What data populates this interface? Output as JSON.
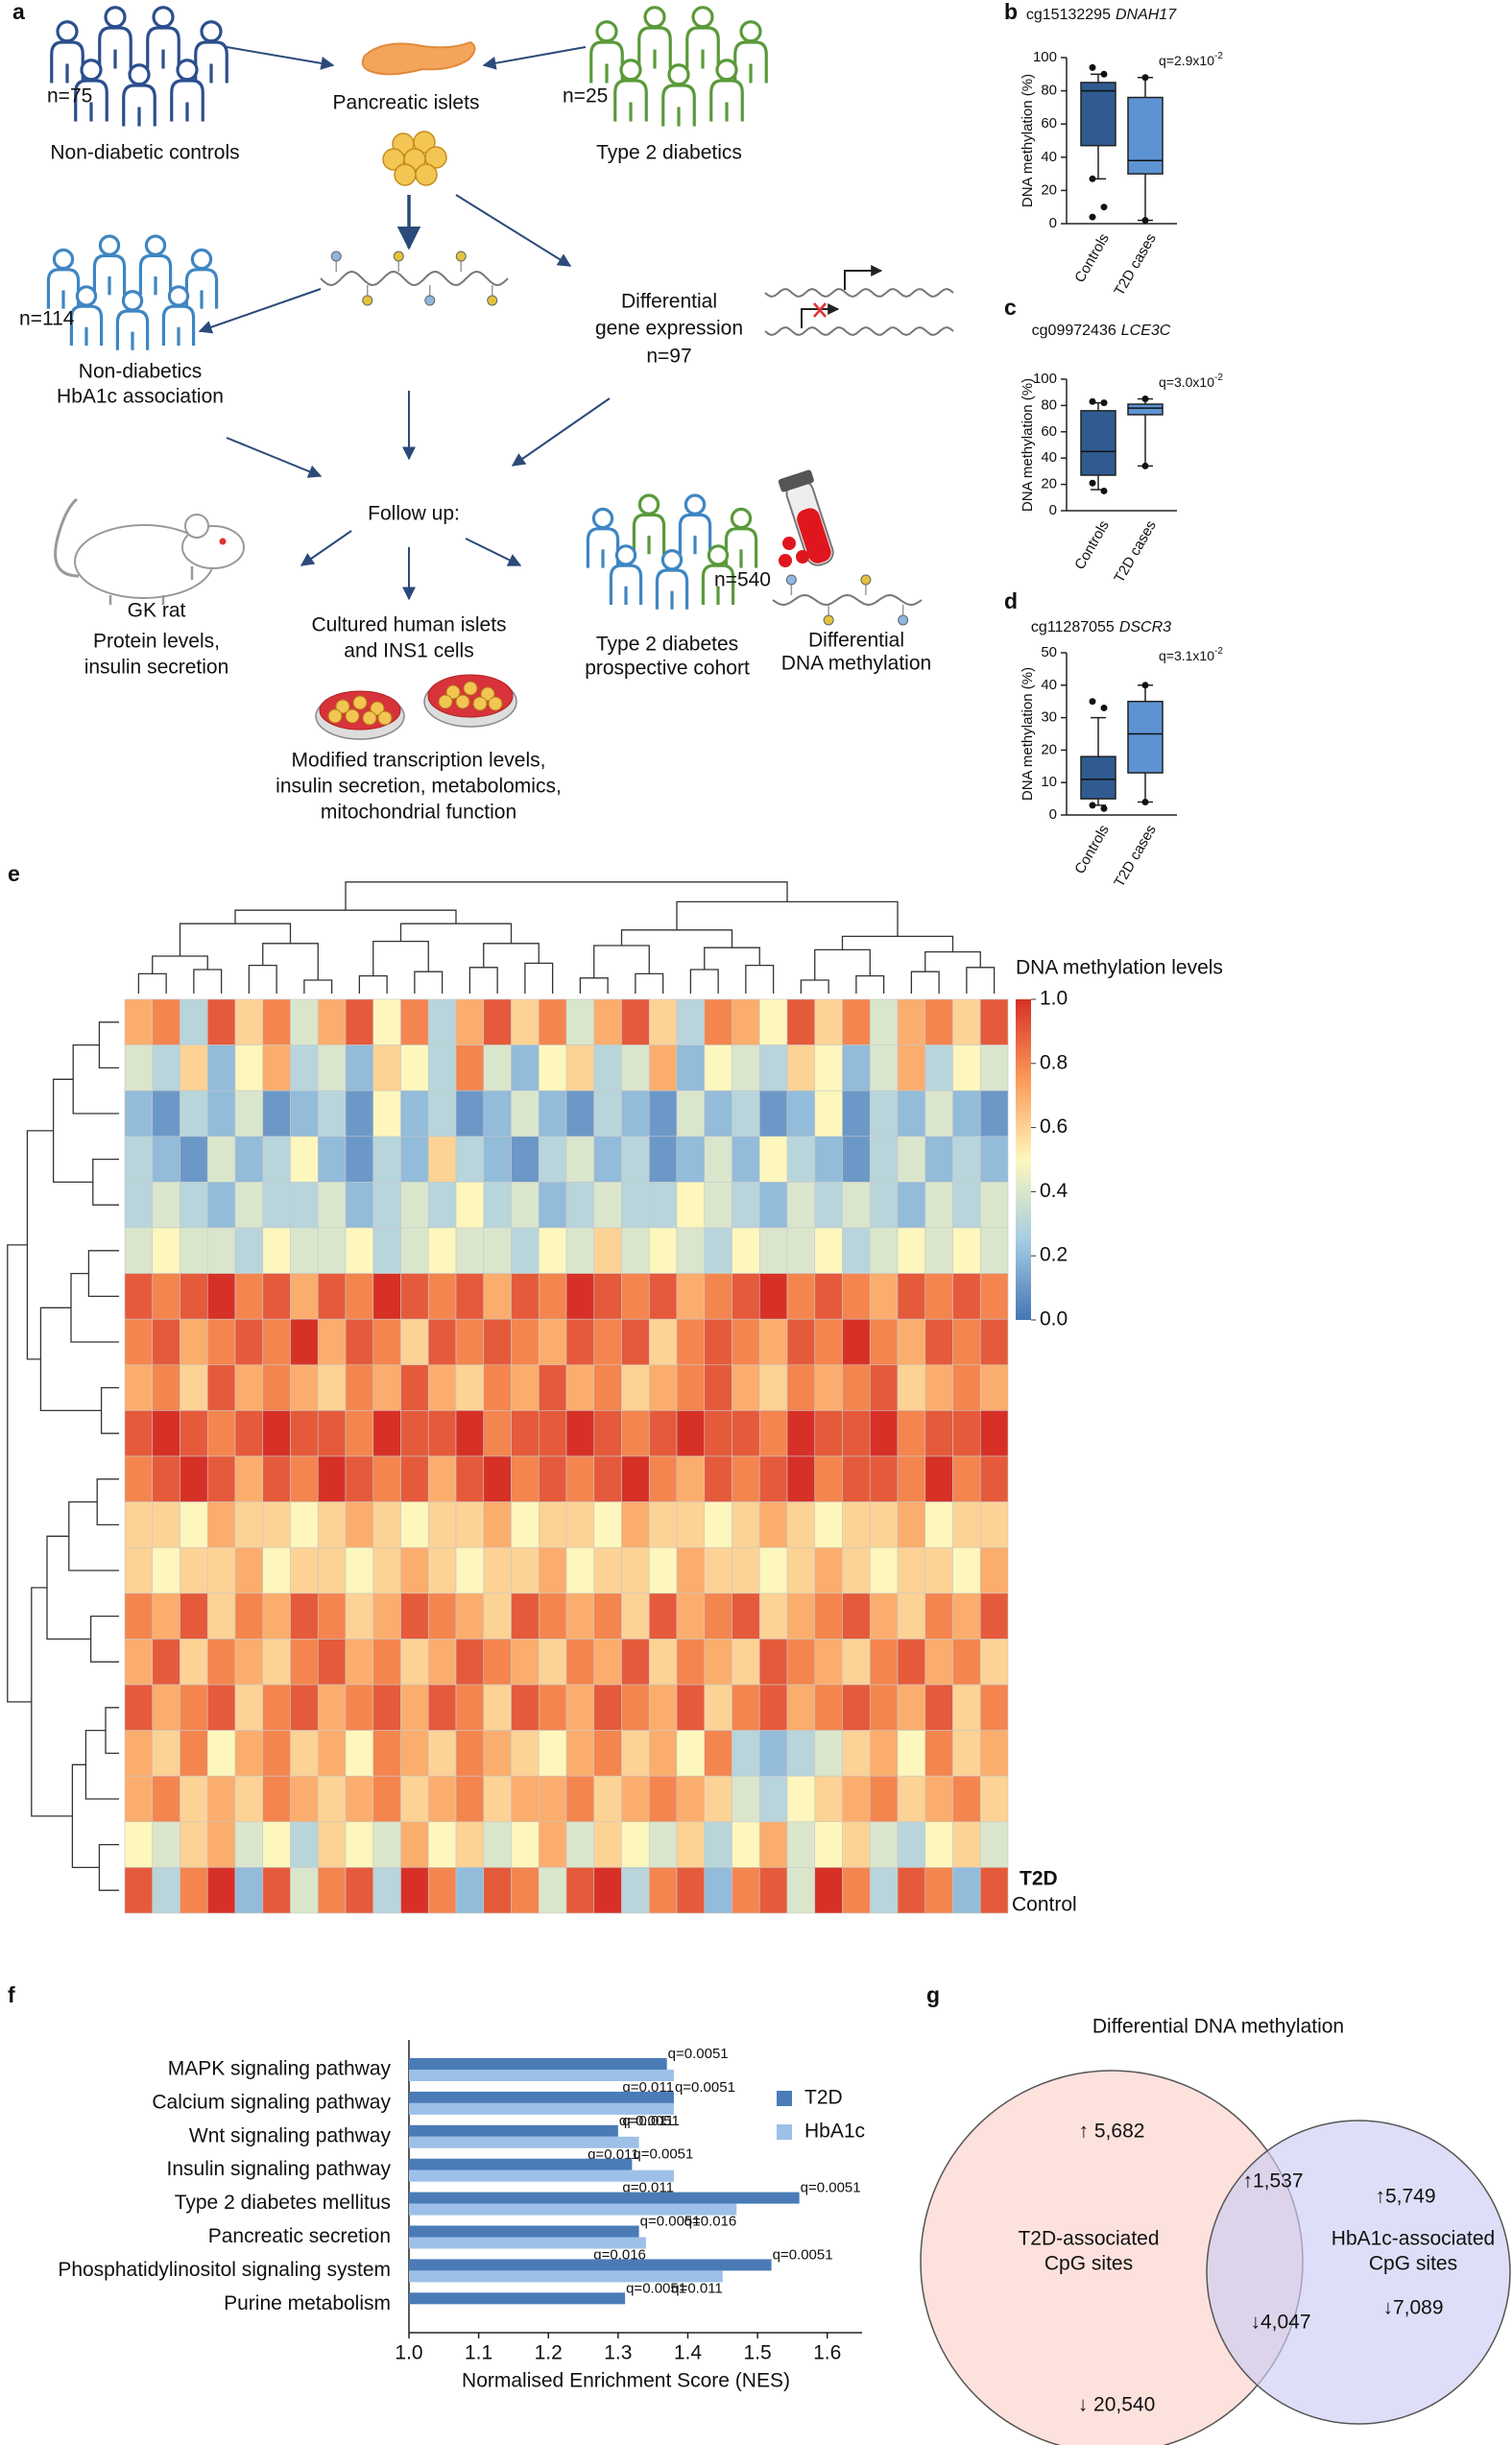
{
  "panel_labels": [
    "a",
    "b",
    "c",
    "d",
    "e",
    "f",
    "g"
  ],
  "diagram": {
    "texts": [
      "n=75",
      "Non-diabetic controls",
      "Pancreatic islets",
      "n=25",
      "Type 2 diabetics",
      "n=114",
      "Non-diabetics",
      "HbA1c association",
      "Differential",
      "gene expression",
      "n=97",
      "Follow up:",
      "GK rat",
      "Protein levels,",
      "insulin secretion",
      "Cultured human islets",
      "and INS1 cells",
      "Modified transcription levels,",
      "insulin secretion, metabolomics,",
      "mitochondrial function",
      "n=540",
      "Type 2 diabetes",
      "prospective cohort",
      "Differential",
      "DNA methylation"
    ]
  },
  "chart_data": [
    {
      "type": "box",
      "title": "cg15132295",
      "gene": "DNAH17",
      "q": "q=2.9x10",
      "q_exp": "-2",
      "ylabel": "DNA methylation (%)",
      "categories": [
        "Controls",
        "T2D cases"
      ],
      "colors": [
        "#2f5b91",
        "#5e93d3"
      ],
      "boxes": [
        {
          "whislo": 27,
          "q1": 47,
          "med": 80,
          "q3": 85,
          "whishi": 90,
          "fliers": [
            94,
            90,
            27,
            10,
            4
          ]
        },
        {
          "whislo": 2,
          "q1": 30,
          "med": 38,
          "q3": 76,
          "whishi": 88,
          "fliers": [
            88,
            2
          ]
        }
      ],
      "ylim": [
        0,
        100
      ],
      "yticks": [
        0,
        20,
        40,
        60,
        80,
        100
      ]
    },
    {
      "type": "box",
      "title": "cg09972436",
      "gene": "LCE3C",
      "q": "q=3.0x10",
      "q_exp": "-2",
      "ylabel": "DNA methylation (%)",
      "categories": [
        "Controls",
        "T2D cases"
      ],
      "colors": [
        "#2f5b91",
        "#5e93d3"
      ],
      "boxes": [
        {
          "whislo": 16,
          "q1": 27,
          "med": 45,
          "q3": 76,
          "whishi": 82,
          "fliers": [
            83,
            82,
            21,
            15
          ]
        },
        {
          "whislo": 34,
          "q1": 73,
          "med": 78,
          "q3": 81,
          "whishi": 85,
          "fliers": [
            85,
            34
          ]
        }
      ],
      "ylim": [
        0,
        100
      ],
      "yticks": [
        0,
        20,
        40,
        60,
        80,
        100
      ]
    },
    {
      "type": "box",
      "title": "cg11287055",
      "gene": "DSCR3",
      "q": "q=3.1x10",
      "q_exp": "-2",
      "ylabel": "DNA methylation (%)",
      "categories": [
        "Controls",
        "T2D cases"
      ],
      "colors": [
        "#2f5b91",
        "#5e93d3"
      ],
      "boxes": [
        {
          "whislo": 3,
          "q1": 5,
          "med": 11,
          "q3": 18,
          "whishi": 30,
          "fliers": [
            35,
            33,
            3,
            2
          ]
        },
        {
          "whislo": 4,
          "q1": 13,
          "med": 25,
          "q3": 35,
          "whishi": 40,
          "fliers": [
            40,
            4
          ]
        }
      ],
      "ylim": [
        0,
        50
      ],
      "yticks": [
        0,
        10,
        20,
        30,
        40,
        50
      ]
    },
    {
      "type": "heatmap",
      "colorbar_title": "DNA methylation levels",
      "colormap": [
        "#4575b4",
        "#a6cde3",
        "#fdf7bd",
        "#fb9a59",
        "#d73027"
      ],
      "zlim": [
        0,
        1
      ],
      "zticks": [
        {
          "value": 0,
          "label": "0.0"
        },
        {
          "value": 0.2,
          "label": "0.2"
        },
        {
          "value": 0.4,
          "label": "0.4"
        },
        {
          "value": 0.6,
          "label": "0.6"
        },
        {
          "value": 0.8,
          "label": "0.8"
        },
        {
          "value": 1,
          "label": "1.0"
        }
      ],
      "group_labels": [
        "T2D",
        "Control"
      ],
      "group_colors": [
        "#7aa7d8",
        "#4a78b0"
      ],
      "values": [
        [
          0.7,
          0.8,
          0.3,
          0.9,
          0.6,
          0.8,
          0.4,
          0.7,
          0.9,
          0.5,
          0.8,
          0.3,
          0.7,
          0.9,
          0.6,
          0.8,
          0.4,
          0.7,
          0.9,
          0.6,
          0.3,
          0.8,
          0.7,
          0.5,
          0.9,
          0.6,
          0.8,
          0.4,
          0.7,
          0.8,
          0.6,
          0.9
        ],
        [
          0.4,
          0.3,
          0.6,
          0.2,
          0.5,
          0.7,
          0.3,
          0.4,
          0.2,
          0.6,
          0.5,
          0.3,
          0.8,
          0.4,
          0.2,
          0.5,
          0.6,
          0.3,
          0.4,
          0.7,
          0.2,
          0.5,
          0.4,
          0.3,
          0.6,
          0.5,
          0.2,
          0.4,
          0.7,
          0.3,
          0.5,
          0.4
        ],
        [
          0.2,
          0.1,
          0.3,
          0.2,
          0.4,
          0.1,
          0.2,
          0.3,
          0.1,
          0.5,
          0.2,
          0.3,
          0.1,
          0.2,
          0.4,
          0.2,
          0.1,
          0.3,
          0.2,
          0.1,
          0.4,
          0.2,
          0.3,
          0.1,
          0.2,
          0.5,
          0.1,
          0.3,
          0.2,
          0.4,
          0.2,
          0.1
        ],
        [
          0.3,
          0.2,
          0.1,
          0.4,
          0.2,
          0.3,
          0.5,
          0.2,
          0.1,
          0.3,
          0.2,
          0.6,
          0.3,
          0.2,
          0.1,
          0.3,
          0.4,
          0.2,
          0.3,
          0.1,
          0.2,
          0.4,
          0.2,
          0.5,
          0.3,
          0.2,
          0.1,
          0.3,
          0.4,
          0.2,
          0.3,
          0.2
        ],
        [
          0.3,
          0.4,
          0.3,
          0.2,
          0.4,
          0.3,
          0.3,
          0.4,
          0.2,
          0.3,
          0.4,
          0.3,
          0.5,
          0.3,
          0.4,
          0.2,
          0.3,
          0.4,
          0.3,
          0.3,
          0.5,
          0.4,
          0.3,
          0.2,
          0.4,
          0.3,
          0.4,
          0.3,
          0.2,
          0.4,
          0.3,
          0.4
        ],
        [
          0.4,
          0.5,
          0.4,
          0.4,
          0.3,
          0.5,
          0.4,
          0.4,
          0.5,
          0.3,
          0.4,
          0.5,
          0.4,
          0.4,
          0.3,
          0.5,
          0.4,
          0.6,
          0.4,
          0.5,
          0.4,
          0.3,
          0.5,
          0.4,
          0.4,
          0.5,
          0.3,
          0.4,
          0.5,
          0.4,
          0.5,
          0.4
        ],
        [
          0.9,
          0.8,
          0.9,
          1,
          0.8,
          0.9,
          0.7,
          0.9,
          0.8,
          1,
          0.9,
          0.8,
          0.9,
          0.7,
          0.9,
          0.8,
          1,
          0.9,
          0.8,
          0.9,
          0.7,
          0.8,
          0.9,
          1,
          0.8,
          0.9,
          0.8,
          0.7,
          0.9,
          0.8,
          0.9,
          0.8
        ],
        [
          0.8,
          0.9,
          0.7,
          0.8,
          0.9,
          0.8,
          1,
          0.7,
          0.9,
          0.8,
          0.6,
          0.9,
          0.8,
          0.9,
          0.8,
          0.7,
          0.9,
          0.8,
          0.9,
          0.6,
          0.8,
          0.9,
          0.8,
          0.7,
          0.9,
          0.8,
          1,
          0.8,
          0.7,
          0.9,
          0.8,
          0.9
        ],
        [
          0.7,
          0.8,
          0.6,
          0.9,
          0.7,
          0.8,
          0.7,
          0.6,
          0.8,
          0.7,
          0.9,
          0.7,
          0.6,
          0.8,
          0.7,
          0.9,
          0.7,
          0.8,
          0.6,
          0.7,
          0.8,
          0.9,
          0.7,
          0.6,
          0.8,
          0.7,
          0.8,
          0.9,
          0.6,
          0.7,
          0.8,
          0.7
        ],
        [
          0.9,
          1,
          0.9,
          0.8,
          0.9,
          1,
          0.9,
          0.9,
          0.8,
          1,
          0.9,
          0.9,
          1,
          0.8,
          0.9,
          0.9,
          1,
          0.9,
          0.8,
          0.9,
          1,
          0.9,
          0.9,
          0.8,
          1,
          0.9,
          0.9,
          1,
          0.8,
          0.9,
          0.9,
          1
        ],
        [
          0.8,
          0.9,
          1,
          0.9,
          0.7,
          0.9,
          0.8,
          1,
          0.9,
          0.8,
          0.9,
          0.7,
          0.9,
          1,
          0.8,
          0.9,
          0.8,
          0.9,
          1,
          0.8,
          0.7,
          0.9,
          0.8,
          0.9,
          1,
          0.8,
          0.9,
          0.9,
          0.8,
          1,
          0.8,
          0.9
        ],
        [
          0.6,
          0.6,
          0.5,
          0.7,
          0.6,
          0.6,
          0.5,
          0.6,
          0.7,
          0.6,
          0.5,
          0.6,
          0.6,
          0.7,
          0.5,
          0.6,
          0.6,
          0.5,
          0.7,
          0.6,
          0.6,
          0.5,
          0.6,
          0.7,
          0.6,
          0.5,
          0.6,
          0.6,
          0.7,
          0.5,
          0.6,
          0.6
        ],
        [
          0.6,
          0.5,
          0.6,
          0.6,
          0.7,
          0.5,
          0.6,
          0.6,
          0.5,
          0.6,
          0.7,
          0.6,
          0.5,
          0.6,
          0.6,
          0.7,
          0.5,
          0.6,
          0.6,
          0.5,
          0.7,
          0.6,
          0.6,
          0.5,
          0.6,
          0.7,
          0.6,
          0.5,
          0.6,
          0.6,
          0.5,
          0.7
        ],
        [
          0.8,
          0.7,
          0.9,
          0.6,
          0.8,
          0.7,
          0.9,
          0.8,
          0.6,
          0.7,
          0.9,
          0.8,
          0.7,
          0.6,
          0.9,
          0.8,
          0.7,
          0.8,
          0.6,
          0.9,
          0.7,
          0.8,
          0.9,
          0.6,
          0.7,
          0.8,
          0.9,
          0.7,
          0.6,
          0.8,
          0.7,
          0.9
        ],
        [
          0.7,
          0.9,
          0.6,
          0.8,
          0.7,
          0.6,
          0.8,
          0.9,
          0.7,
          0.8,
          0.6,
          0.7,
          0.9,
          0.8,
          0.7,
          0.6,
          0.8,
          0.7,
          0.9,
          0.6,
          0.8,
          0.7,
          0.6,
          0.9,
          0.8,
          0.7,
          0.6,
          0.8,
          0.9,
          0.7,
          0.8,
          0.6
        ],
        [
          0.9,
          0.7,
          0.8,
          0.9,
          0.6,
          0.8,
          0.9,
          0.7,
          0.8,
          0.9,
          0.7,
          0.9,
          0.8,
          0.6,
          0.9,
          0.8,
          0.7,
          0.9,
          0.8,
          0.7,
          0.9,
          0.6,
          0.8,
          0.9,
          0.7,
          0.8,
          0.9,
          0.8,
          0.7,
          0.9,
          0.6,
          0.8
        ],
        [
          0.7,
          0.6,
          0.8,
          0.5,
          0.7,
          0.8,
          0.6,
          0.7,
          0.5,
          0.8,
          0.7,
          0.6,
          0.8,
          0.7,
          0.6,
          0.5,
          0.7,
          0.8,
          0.6,
          0.7,
          0.5,
          0.8,
          0.3,
          0.2,
          0.3,
          0.4,
          0.6,
          0.7,
          0.5,
          0.8,
          0.6,
          0.7
        ],
        [
          0.7,
          0.8,
          0.6,
          0.7,
          0.6,
          0.8,
          0.7,
          0.6,
          0.7,
          0.8,
          0.6,
          0.7,
          0.8,
          0.6,
          0.7,
          0.7,
          0.8,
          0.6,
          0.7,
          0.8,
          0.7,
          0.6,
          0.4,
          0.3,
          0.5,
          0.6,
          0.7,
          0.8,
          0.6,
          0.7,
          0.8,
          0.6
        ],
        [
          0.5,
          0.4,
          0.6,
          0.7,
          0.4,
          0.5,
          0.3,
          0.6,
          0.5,
          0.4,
          0.7,
          0.5,
          0.6,
          0.4,
          0.5,
          0.7,
          0.4,
          0.6,
          0.5,
          0.4,
          0.6,
          0.3,
          0.5,
          0.7,
          0.4,
          0.5,
          0.6,
          0.4,
          0.3,
          0.5,
          0.6,
          0.4
        ],
        [
          0.9,
          0.3,
          0.8,
          1,
          0.2,
          0.9,
          0.4,
          0.8,
          0.9,
          0.3,
          1,
          0.8,
          0.2,
          0.9,
          0.8,
          0.4,
          0.9,
          1,
          0.3,
          0.8,
          0.9,
          0.2,
          0.8,
          0.9,
          0.4,
          1,
          0.8,
          0.3,
          0.9,
          0.8,
          0.2,
          0.9
        ]
      ]
    },
    {
      "type": "hbar",
      "xlabel": "Normalised Enrichment Score (NES)",
      "categories": [
        "MAPK signaling pathway",
        "Calcium signaling pathway",
        "Wnt signaling pathway",
        "Insulin signaling pathway",
        "Type 2 diabetes mellitus",
        "Pancreatic secretion",
        "Phosphatidylinositol signaling system",
        "Purine metabolism"
      ],
      "series": [
        {
          "name": "T2D",
          "color": "#4a7bb7",
          "values": [
            1.37,
            1.38,
            1.3,
            1.32,
            1.56,
            1.33,
            1.52,
            1.31
          ],
          "q_labels": [
            "q=0.0051",
            "q=0.0051",
            "q=0.0051",
            "q=0.0051",
            "q=0.0051",
            "q=0.0051",
            "q=0.0051",
            "q=0.0051"
          ]
        },
        {
          "name": "HbA1c",
          "color": "#9dc0e8",
          "values": [
            1.38,
            1.38,
            1.33,
            1.38,
            1.47,
            1.34,
            1.45,
            null
          ],
          "q_labels": [
            "q=0.011",
            "q=0.011",
            "q=0.011",
            "q=0.011",
            "q=0.016",
            "q=0.016",
            "q=0.011",
            null
          ]
        }
      ],
      "xlim": [
        1.0,
        1.65
      ],
      "xticks": [
        {
          "value": 1,
          "label": "1.0"
        },
        {
          "value": 1.1,
          "label": "1.1"
        },
        {
          "value": 1.2,
          "label": "1.2"
        },
        {
          "value": 1.3,
          "label": "1.3"
        },
        {
          "value": 1.4,
          "label": "1.4"
        },
        {
          "value": 1.5,
          "label": "1.5"
        },
        {
          "value": 1.6,
          "label": "1.6"
        }
      ],
      "legend": "right"
    }
  ],
  "venn": {
    "title": "Differential DNA methylation",
    "texts": [
      "↑ 5,682",
      "T2D-associated",
      "CpG sites",
      "↓ 20,540",
      "↑1,537",
      "↓4,047",
      "↑5,749",
      "HbA1c-associated",
      "CpG sites",
      "↓7,089"
    ]
  }
}
